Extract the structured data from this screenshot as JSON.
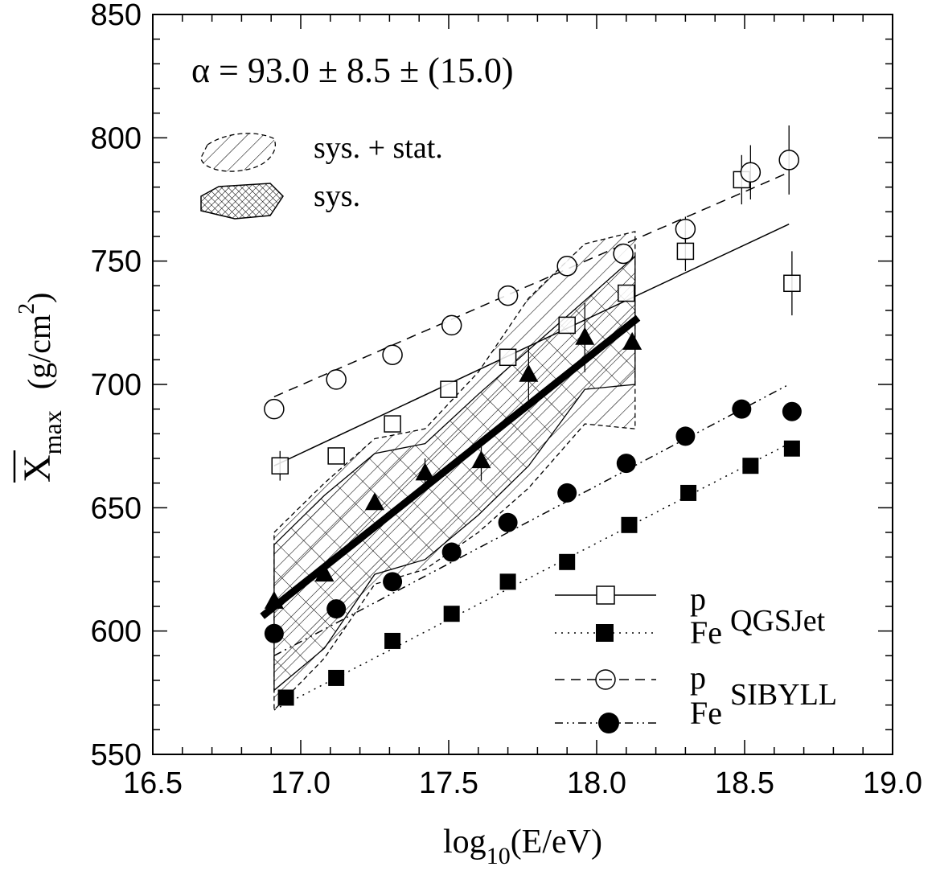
{
  "chart_data": {
    "type": "scatter",
    "xlabel": "log",
    "xlabel_sub": "10",
    "xlabel_rest": "(E/eV)",
    "ylabel": "X",
    "ylabel_sub": "max",
    "ylabel_units_pre": "(g/cm",
    "ylabel_units_sup": "2",
    "ylabel_units_post": ")",
    "xlim": [
      16.5,
      19.0
    ],
    "ylim": [
      550,
      850
    ],
    "xticks": [
      "16.5",
      "17.0",
      "17.5",
      "18.0",
      "18.5",
      "19.0"
    ],
    "yticks": [
      "550",
      "600",
      "650",
      "700",
      "750",
      "800",
      "850"
    ],
    "annotation": {
      "alpha": "α = 93.0   ± 8.5   ± (15.0)"
    },
    "band_legend": {
      "sys_stat": "sys. + stat.",
      "sys": "sys."
    },
    "legend": {
      "p": "p",
      "fe": "Fe",
      "qgsjet": "QGSJet",
      "sibyll": "SIBYLL"
    },
    "data_series": {
      "points": [
        [
          16.91,
          612
        ],
        [
          17.08,
          623
        ],
        [
          17.25,
          652
        ],
        [
          17.42,
          664
        ],
        [
          17.61,
          669
        ],
        [
          17.77,
          704
        ],
        [
          17.96,
          719
        ],
        [
          18.12,
          717
        ]
      ],
      "errors": [
        0,
        0,
        0,
        6,
        8,
        11,
        14,
        0
      ]
    },
    "fit_line": [
      [
        16.87,
        606
      ],
      [
        18.14,
        727
      ]
    ],
    "model_series": [
      {
        "model": "QGSJet",
        "primary": "p",
        "marker": "open-square",
        "line": "solid",
        "points": [
          [
            16.93,
            667
          ],
          [
            17.12,
            671
          ],
          [
            17.31,
            684
          ],
          [
            17.5,
            698
          ],
          [
            17.7,
            711
          ],
          [
            17.9,
            724
          ],
          [
            18.1,
            737
          ],
          [
            18.3,
            754
          ],
          [
            18.49,
            783
          ],
          [
            18.66,
            741
          ]
        ],
        "errors": [
          6,
          0,
          0,
          0,
          0,
          0,
          0,
          8,
          10,
          13
        ],
        "fit": [
          [
            16.91,
            667
          ],
          [
            18.65,
            765
          ]
        ]
      },
      {
        "model": "QGSJet",
        "primary": "Fe",
        "marker": "filled-square",
        "line": "dotted",
        "points": [
          [
            16.95,
            573
          ],
          [
            17.12,
            581
          ],
          [
            17.31,
            596
          ],
          [
            17.51,
            607
          ],
          [
            17.7,
            620
          ],
          [
            17.9,
            628
          ],
          [
            18.11,
            643
          ],
          [
            18.31,
            656
          ],
          [
            18.52,
            667
          ],
          [
            18.66,
            674
          ]
        ],
        "errors": [
          0,
          0,
          0,
          0,
          0,
          0,
          0,
          0,
          0,
          0
        ],
        "fit": [
          [
            16.91,
            568
          ],
          [
            18.65,
            676
          ]
        ]
      },
      {
        "model": "SIBYLL",
        "primary": "p",
        "marker": "open-circle",
        "line": "dashed",
        "points": [
          [
            16.91,
            690
          ],
          [
            17.12,
            702
          ],
          [
            17.31,
            712
          ],
          [
            17.51,
            724
          ],
          [
            17.7,
            736
          ],
          [
            17.9,
            748
          ],
          [
            18.09,
            753
          ],
          [
            18.3,
            763
          ],
          [
            18.52,
            786
          ],
          [
            18.65,
            791
          ]
        ],
        "errors": [
          0,
          0,
          0,
          0,
          0,
          0,
          0,
          5,
          11,
          14
        ],
        "fit": [
          [
            16.91,
            695
          ],
          [
            18.65,
            786
          ]
        ]
      },
      {
        "model": "SIBYLL",
        "primary": "Fe",
        "marker": "filled-circle",
        "line": "dash-dot",
        "points": [
          [
            16.91,
            599
          ],
          [
            17.12,
            609
          ],
          [
            17.31,
            620
          ],
          [
            17.51,
            632
          ],
          [
            17.7,
            644
          ],
          [
            17.9,
            656
          ],
          [
            18.1,
            668
          ],
          [
            18.3,
            679
          ],
          [
            18.49,
            690
          ],
          [
            18.66,
            689
          ]
        ],
        "errors": [
          0,
          0,
          0,
          0,
          0,
          0,
          0,
          0,
          0,
          0
        ],
        "fit": [
          [
            16.91,
            590
          ],
          [
            18.65,
            700
          ]
        ]
      }
    ],
    "bands": {
      "sys": {
        "upper": [
          [
            16.91,
            635
          ],
          [
            17.08,
            655
          ],
          [
            17.25,
            672
          ],
          [
            17.42,
            676
          ],
          [
            17.6,
            696
          ],
          [
            17.77,
            714
          ],
          [
            17.96,
            734
          ],
          [
            18.13,
            752
          ]
        ],
        "lower": [
          [
            18.13,
            700
          ],
          [
            17.96,
            698
          ],
          [
            17.77,
            667
          ],
          [
            17.6,
            647
          ],
          [
            17.42,
            629
          ],
          [
            17.25,
            623
          ],
          [
            17.08,
            593
          ],
          [
            16.91,
            576
          ]
        ]
      },
      "sys_stat": {
        "upper": [
          [
            16.91,
            640
          ],
          [
            17.08,
            660
          ],
          [
            17.25,
            678
          ],
          [
            17.42,
            682
          ],
          [
            17.6,
            705
          ],
          [
            17.77,
            735
          ],
          [
            17.96,
            757
          ],
          [
            18.13,
            762
          ]
        ],
        "lower": [
          [
            18.13,
            682
          ],
          [
            17.96,
            684
          ],
          [
            17.77,
            658
          ],
          [
            17.6,
            640
          ],
          [
            17.42,
            625
          ],
          [
            17.25,
            619
          ],
          [
            17.08,
            589
          ],
          [
            16.91,
            568
          ]
        ]
      }
    }
  }
}
